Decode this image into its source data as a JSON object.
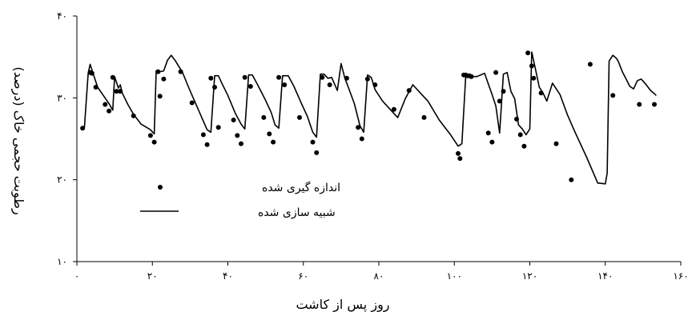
{
  "chart_data": {
    "type": "line",
    "xlabel": "روز پس از کاشت",
    "ylabel": "رطوبت حجمی خاک (درصد)",
    "xlim": [
      0,
      160
    ],
    "ylim": [
      10,
      40
    ],
    "x_ticks": [
      0,
      20,
      40,
      60,
      80,
      100,
      120,
      140,
      160
    ],
    "y_ticks": [
      10,
      20,
      30,
      40
    ],
    "x_tick_labels": [
      "۰",
      "۲۰",
      "۴۰",
      "۶۰",
      "۸۰",
      "۱۰۰",
      "۱۲۰",
      "۱۴۰",
      "۱۶۰"
    ],
    "y_tick_labels": [
      "۱۰",
      "۲۰",
      "۳۰",
      "۴۰"
    ],
    "grid": false,
    "legend_position": "bottom-left",
    "series": [
      {
        "name": "اندازه گیری شده",
        "style": "markers",
        "color": "#000000",
        "x": [
          1.5,
          3.5,
          4,
          5,
          7.5,
          8.5,
          9.5,
          10.5,
          11.5,
          15,
          19.5,
          20.5,
          21.5,
          22,
          23,
          27.5,
          30.5,
          33.5,
          34.5,
          35.5,
          36.5,
          37.5,
          41.5,
          42.5,
          43.5,
          44.5,
          46,
          49.5,
          51,
          52,
          53.5,
          55,
          59,
          62.5,
          63.5,
          65,
          67,
          71.5,
          74.5,
          75.5,
          77,
          79,
          84,
          88,
          92,
          101,
          101.5,
          102.5,
          103,
          103.5,
          104,
          104.5,
          109,
          110,
          111,
          112,
          113,
          116.5,
          117.5,
          118.5,
          119.5,
          120.5,
          121,
          123,
          127,
          131,
          136,
          142,
          149,
          153
        ],
        "y": [
          26.3,
          33.1,
          33,
          31.3,
          29.2,
          28.4,
          32.5,
          30.8,
          30.8,
          27.8,
          25.4,
          24.6,
          33.2,
          30.2,
          32.3,
          33.2,
          29.4,
          25.5,
          24.3,
          32.4,
          31.3,
          26.4,
          27.3,
          25.4,
          24.4,
          32.5,
          31.4,
          27.6,
          25.6,
          24.6,
          32.5,
          31.6,
          27.6,
          24.6,
          23.3,
          32.5,
          31.6,
          32.4,
          26.4,
          25,
          32.3,
          31.6,
          28.6,
          30.9,
          27.6,
          23.2,
          22.6,
          32.8,
          32.8,
          32.7,
          32.7,
          32.6,
          25.7,
          24.6,
          33.1,
          29.6,
          30.8,
          27.4,
          25.5,
          24.1,
          35.5,
          33.9,
          32.4,
          30.6,
          24.4,
          20,
          34.1,
          30.3,
          29.2,
          29.2
        ]
      },
      {
        "name": "شبیه سازی شده",
        "style": "line",
        "color": "#000000",
        "x": [
          1,
          2,
          3,
          3.5,
          4.5,
          5.5,
          7,
          8.5,
          9.5,
          10,
          11,
          11.5,
          12,
          13.5,
          15,
          17,
          19.5,
          20.5,
          21,
          22,
          23,
          24,
          25,
          26,
          28,
          29.5,
          31,
          33,
          34.5,
          35.5,
          36.5,
          37.5,
          38.5,
          40,
          42,
          43.5,
          44.5,
          45.5,
          46.5,
          48,
          50,
          51.5,
          52.5,
          53.5,
          54.5,
          56,
          57.5,
          59.5,
          61,
          62.5,
          63.5,
          64.5,
          65.5,
          66.5,
          67.5,
          69,
          70,
          71,
          72,
          73.5,
          75,
          76,
          77,
          78,
          79,
          81,
          83,
          85,
          87,
          89,
          91,
          93,
          96,
          99,
          101,
          102,
          103,
          104.5,
          106,
          108,
          110,
          111,
          112,
          113,
          114,
          115,
          116,
          117,
          118,
          119,
          120,
          120.5,
          121.5,
          122.5,
          123.5,
          124.5,
          126,
          128,
          130,
          132,
          135,
          138,
          140,
          140.5,
          141,
          142,
          143,
          143.5,
          144.5,
          145.5,
          146.5,
          147.5,
          148.5,
          149.5,
          150.5,
          152,
          153.5
        ],
        "y": [
          26.3,
          26.4,
          33,
          34.1,
          32.7,
          31.3,
          30.3,
          29.3,
          28.5,
          32.6,
          31.2,
          31.6,
          30.6,
          29.2,
          28,
          26.8,
          26.1,
          25.6,
          33.3,
          33.2,
          33.3,
          34.6,
          35.2,
          34.6,
          33.1,
          31.4,
          29.8,
          27.7,
          26.1,
          25.8,
          32.7,
          32.7,
          31.7,
          30.3,
          28.1,
          26.8,
          26.2,
          32.8,
          32.8,
          31.5,
          29.7,
          28.2,
          26.7,
          26.3,
          32.7,
          32.7,
          31.4,
          29.3,
          27.8,
          25.8,
          25.2,
          32.9,
          32.9,
          32.4,
          32.5,
          30.9,
          34.2,
          32.4,
          31.2,
          29.3,
          26.6,
          25.8,
          32.8,
          32.5,
          31,
          29.6,
          28.6,
          27.6,
          29.9,
          31.6,
          30.6,
          29.6,
          27.3,
          25.5,
          24.1,
          24.4,
          32.5,
          32.6,
          32.6,
          33,
          30.4,
          29,
          25.7,
          32.9,
          33.1,
          30.8,
          29.9,
          26.7,
          26.2,
          25.5,
          26.2,
          35.6,
          33.5,
          31.3,
          30.6,
          29.6,
          31.8,
          30.4,
          27.9,
          25.8,
          22.8,
          19.6,
          19.5,
          20.8,
          34.5,
          35.2,
          34.8,
          34.4,
          33.2,
          32.3,
          31.4,
          31.1,
          32.1,
          32.3,
          31.8,
          30.9,
          30.3
        ]
      }
    ]
  }
}
